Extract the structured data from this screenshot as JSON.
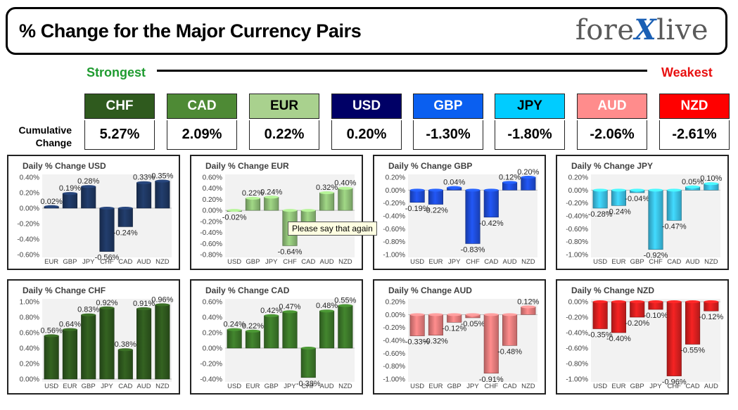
{
  "header": {
    "title": "% Change for the Major Currency Pairs",
    "logo_prefix": "fore",
    "logo_x": "X",
    "logo_suffix": "live"
  },
  "scale": {
    "strongest": "Strongest",
    "weakest": "Weakest",
    "cumulative_label": "Cumulative Change"
  },
  "currencies": [
    {
      "code": "CHF",
      "value": "5.27%",
      "color": "#2f5a1e",
      "text_color": "#ffffff"
    },
    {
      "code": "CAD",
      "value": "2.09%",
      "color": "#4e8a35",
      "text_color": "#ffffff"
    },
    {
      "code": "EUR",
      "value": "0.22%",
      "color": "#a9d18e",
      "text_color": "#000000"
    },
    {
      "code": "USD",
      "value": "0.20%",
      "color": "#000066",
      "text_color": "#ffffff"
    },
    {
      "code": "GBP",
      "value": "-1.30%",
      "color": "#0a5ff0",
      "text_color": "#ffffff"
    },
    {
      "code": "JPY",
      "value": "-1.80%",
      "color": "#00ccff",
      "text_color": "#000000"
    },
    {
      "code": "AUD",
      "value": "-2.06%",
      "color": "#ff8c8c",
      "text_color": "#ffffff"
    },
    {
      "code": "NZD",
      "value": "-2.61%",
      "color": "#ff0000",
      "text_color": "#ffffff"
    }
  ],
  "tooltip": "Please say that again",
  "chart_data": [
    {
      "type": "bar",
      "title": "Daily % Change USD",
      "categories": [
        "EUR",
        "GBP",
        "JPY",
        "CHF",
        "CAD",
        "AUD",
        "NZD"
      ],
      "values": [
        0.02,
        0.19,
        0.28,
        -0.56,
        -0.24,
        0.33,
        0.35
      ],
      "labels": [
        "0.02%",
        "0.19%",
        "0.28%",
        "-0.56%",
        "-0.24%",
        "0.33%",
        "0.35%"
      ],
      "ylim": [
        -0.6,
        0.4
      ],
      "step": 0.2,
      "ticks": [
        "0.40%",
        "0.20%",
        "0.00%",
        "-0.20%",
        "-0.40%",
        "-0.60%"
      ],
      "color": "#1f3864"
    },
    {
      "type": "bar",
      "title": "Daily % Change EUR",
      "categories": [
        "USD",
        "GBP",
        "JPY",
        "CHF",
        "CAD",
        "AUD",
        "NZD"
      ],
      "values": [
        -0.02,
        0.22,
        0.24,
        -0.64,
        -0.38,
        0.32,
        0.4
      ],
      "labels": [
        "-0.02%",
        "0.22%",
        "0.24%",
        "-0.64%",
        "",
        "0.32%",
        "0.40%"
      ],
      "ylim": [
        -0.8,
        0.6
      ],
      "step": 0.2,
      "ticks": [
        "0.60%",
        "0.40%",
        "0.20%",
        "0.00%",
        "-0.20%",
        "-0.40%",
        "-0.60%",
        "-0.80%"
      ],
      "color": "#92c47a"
    },
    {
      "type": "bar",
      "title": "Daily % Change GBP",
      "categories": [
        "USD",
        "EUR",
        "JPY",
        "CHF",
        "CAD",
        "AUD",
        "NZD"
      ],
      "values": [
        -0.19,
        -0.22,
        0.04,
        -0.83,
        -0.42,
        0.12,
        0.2
      ],
      "labels": [
        "-0.19%",
        "-0.22%",
        "0.04%",
        "-0.83%",
        "-0.42%",
        "0.12%",
        "0.20%"
      ],
      "ylim": [
        -1.0,
        0.2
      ],
      "step": 0.2,
      "ticks": [
        "0.20%",
        "0.00%",
        "-0.20%",
        "-0.40%",
        "-0.60%",
        "-0.80%",
        "-1.00%"
      ],
      "color": "#1f4fe0"
    },
    {
      "type": "bar",
      "title": "Daily % Change JPY",
      "categories": [
        "USD",
        "EUR",
        "GBP",
        "CHF",
        "CAD",
        "AUD",
        "NZD"
      ],
      "values": [
        -0.28,
        -0.24,
        -0.04,
        -0.92,
        -0.47,
        0.05,
        0.1
      ],
      "labels": [
        "-0.28%",
        "-0.24%",
        "-0.04%",
        "-0.92%",
        "-0.47%",
        "0.05%",
        "0.10%"
      ],
      "ylim": [
        -1.0,
        0.2
      ],
      "step": 0.2,
      "ticks": [
        "0.20%",
        "0.00%",
        "-0.20%",
        "-0.40%",
        "-0.60%",
        "-0.80%",
        "-1.00%"
      ],
      "color": "#3cc7ee"
    },
    {
      "type": "bar",
      "title": "Daily % Change CHF",
      "categories": [
        "USD",
        "EUR",
        "GBP",
        "JPY",
        "CAD",
        "AUD",
        "NZD"
      ],
      "values": [
        0.56,
        0.64,
        0.83,
        0.92,
        0.38,
        0.91,
        0.96
      ],
      "labels": [
        "0.56%",
        "0.64%",
        "0.83%",
        "0.92%",
        "0.38%",
        "0.91%",
        "0.96%"
      ],
      "ylim": [
        0,
        1.0
      ],
      "step": 0.2,
      "ticks": [
        "1.00%",
        "0.80%",
        "0.60%",
        "0.40%",
        "0.20%",
        "0.00%"
      ],
      "color": "#2f5a1e"
    },
    {
      "type": "bar",
      "title": "Daily % Change CAD",
      "categories": [
        "USD",
        "EUR",
        "GBP",
        "JPY",
        "CHF",
        "AUD",
        "NZD"
      ],
      "values": [
        0.24,
        0.22,
        0.42,
        0.47,
        -0.38,
        0.48,
        0.55
      ],
      "labels": [
        "0.24%",
        "0.22%",
        "0.42%",
        "0.47%",
        "-0.38%",
        "0.48%",
        "0.55%"
      ],
      "ylim": [
        -0.4,
        0.6
      ],
      "step": 0.2,
      "ticks": [
        "0.60%",
        "0.40%",
        "0.20%",
        "0.00%",
        "-0.20%",
        "-0.40%"
      ],
      "color": "#3d7a2a"
    },
    {
      "type": "bar",
      "title": "Daily % Change AUD",
      "categories": [
        "USD",
        "EUR",
        "GBP",
        "JPY",
        "CHF",
        "CAD",
        "NZD"
      ],
      "values": [
        -0.33,
        -0.32,
        -0.12,
        -0.05,
        -0.91,
        -0.48,
        0.12
      ],
      "labels": [
        "-0.33%",
        "-0.32%",
        "-0.12%",
        "-0.05%",
        "-0.91%",
        "-0.48%",
        "0.12%"
      ],
      "ylim": [
        -1.0,
        0.2
      ],
      "step": 0.2,
      "ticks": [
        "0.20%",
        "0.00%",
        "-0.20%",
        "-0.40%",
        "-0.60%",
        "-0.80%",
        "-1.00%"
      ],
      "color": "#f08080"
    },
    {
      "type": "bar",
      "title": "Daily % Change NZD",
      "categories": [
        "USD",
        "EUR",
        "GBP",
        "JPY",
        "CHF",
        "CAD",
        "AUD"
      ],
      "values": [
        -0.35,
        -0.4,
        -0.2,
        -0.1,
        -0.96,
        -0.55,
        -0.12
      ],
      "labels": [
        "-0.35%",
        "-0.40%",
        "-0.20%",
        "-0.10%",
        "-0.96%",
        "-0.55%",
        "-0.12%"
      ],
      "ylim": [
        -1.0,
        0.0
      ],
      "step": 0.2,
      "ticks": [
        "0.00%",
        "-0.20%",
        "-0.40%",
        "-0.60%",
        "-0.80%",
        "-1.00%"
      ],
      "color": "#e02020"
    }
  ]
}
